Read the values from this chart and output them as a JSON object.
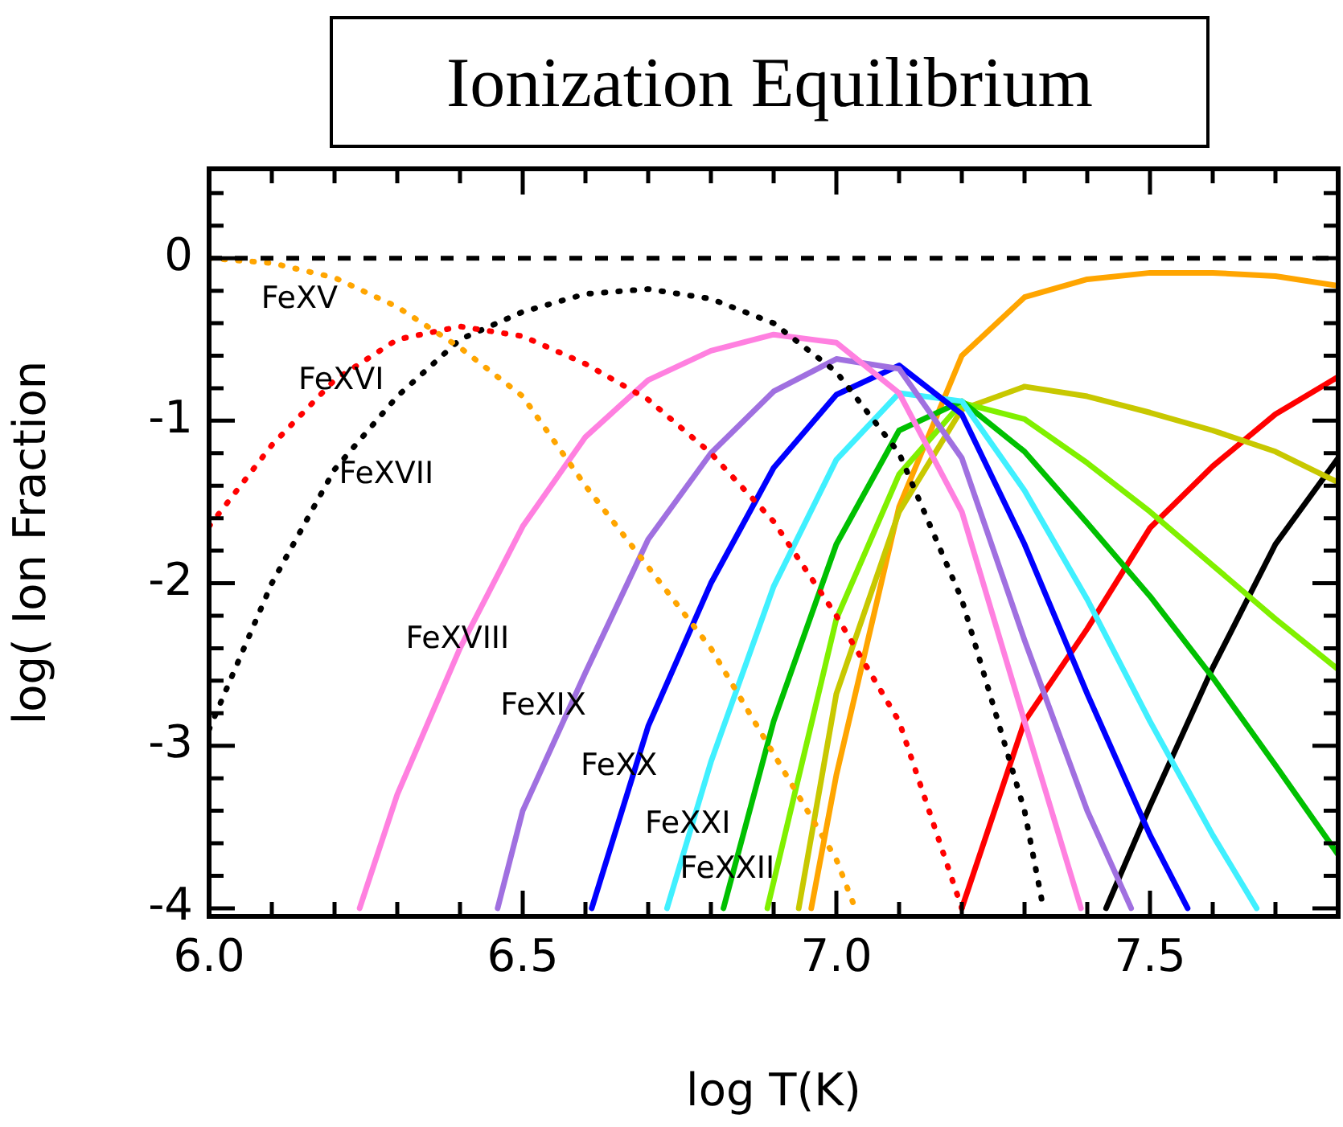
{
  "chart_data": {
    "type": "line",
    "title": "Ionization Equilibrium",
    "xlabel": "log T(K)",
    "ylabel": "log( Ion Fraction",
    "xlim": [
      6.0,
      7.8
    ],
    "ylim": [
      -4.05,
      0.55
    ],
    "xticks": [
      {
        "value": 6.0,
        "label": "6.0"
      },
      {
        "value": 6.1,
        "label": null
      },
      {
        "value": 6.2,
        "label": null
      },
      {
        "value": 6.3,
        "label": null
      },
      {
        "value": 6.4,
        "label": null
      },
      {
        "value": 6.5,
        "label": "6.5"
      },
      {
        "value": 6.6,
        "label": null
      },
      {
        "value": 6.7,
        "label": null
      },
      {
        "value": 6.8,
        "label": null
      },
      {
        "value": 6.9,
        "label": null
      },
      {
        "value": 7.0,
        "label": "7.0"
      },
      {
        "value": 7.1,
        "label": null
      },
      {
        "value": 7.2,
        "label": null
      },
      {
        "value": 7.3,
        "label": null
      },
      {
        "value": 7.4,
        "label": null
      },
      {
        "value": 7.5,
        "label": "7.5"
      },
      {
        "value": 7.6,
        "label": null
      },
      {
        "value": 7.7,
        "label": null
      }
    ],
    "yticks": [
      -4,
      {
        "value": -3.8,
        "label": null
      },
      {
        "value": -3.6,
        "label": null
      },
      {
        "value": -3.4,
        "label": null
      },
      {
        "value": -3.2,
        "label": null
      },
      -3,
      {
        "value": -2.8,
        "label": null
      },
      {
        "value": -2.6,
        "label": null
      },
      {
        "value": -2.4,
        "label": null
      },
      {
        "value": -2.2,
        "label": null
      },
      -2,
      {
        "value": -1.8,
        "label": null
      },
      {
        "value": -1.6,
        "label": null
      },
      {
        "value": -1.4,
        "label": null
      },
      {
        "value": -1.2,
        "label": null
      },
      -1,
      {
        "value": -0.8,
        "label": null
      },
      {
        "value": -0.6,
        "label": null
      },
      {
        "value": -0.4,
        "label": null
      },
      {
        "value": -0.2,
        "label": null
      },
      0,
      {
        "value": 0.2,
        "label": null
      },
      {
        "value": 0.4,
        "label": null
      }
    ],
    "grid": false,
    "legend": false,
    "marker": "none",
    "ref_lines": [
      {
        "axis": "y",
        "value": 0,
        "color": "#000000",
        "line_style": "dashed"
      }
    ],
    "series": [
      {
        "color": "#ffa500",
        "line_style": "dotted",
        "x": [
          6.0,
          6.1,
          6.2,
          6.3,
          6.4,
          6.5,
          6.6,
          6.7,
          6.8,
          6.9,
          7.0,
          7.03
        ],
        "values": [
          0,
          -0.03,
          -0.12,
          -0.3,
          -0.55,
          -0.85,
          -1.4,
          -1.9,
          -2.4,
          -3.05,
          -3.7,
          -4.0
        ]
      },
      {
        "color": "#ff0000",
        "line_style": "dotted",
        "x": [
          6.0,
          6.1,
          6.2,
          6.3,
          6.4,
          6.5,
          6.6,
          6.7,
          6.8,
          6.9,
          7.0,
          7.1,
          7.2
        ],
        "values": [
          -1.65,
          -1.15,
          -0.75,
          -0.5,
          -0.42,
          -0.48,
          -0.65,
          -0.87,
          -1.2,
          -1.62,
          -2.2,
          -2.85,
          -4.0
        ]
      },
      {
        "color": "#000000",
        "line_style": "dotted",
        "x": [
          6.0,
          6.1,
          6.2,
          6.3,
          6.4,
          6.5,
          6.6,
          6.7,
          6.8,
          6.9,
          7.0,
          7.1,
          7.2,
          7.3,
          7.33
        ],
        "values": [
          -2.9,
          -2.0,
          -1.3,
          -0.85,
          -0.5,
          -0.33,
          -0.22,
          -0.19,
          -0.25,
          -0.4,
          -0.7,
          -1.2,
          -2.1,
          -3.4,
          -4.0
        ]
      },
      {
        "color": "#ff80e0",
        "line_style": "solid",
        "x": [
          6.24,
          6.3,
          6.4,
          6.5,
          6.6,
          6.7,
          6.8,
          6.9,
          7.0,
          7.1,
          7.2,
          7.3,
          7.39
        ],
        "values": [
          -4.0,
          -3.3,
          -2.4,
          -1.65,
          -1.1,
          -0.75,
          -0.57,
          -0.47,
          -0.52,
          -0.83,
          -1.56,
          -2.85,
          -4.0
        ]
      },
      {
        "color": "#a070e0",
        "line_style": "solid",
        "x": [
          6.46,
          6.5,
          6.6,
          6.7,
          6.8,
          6.9,
          7.0,
          7.1,
          7.2,
          7.3,
          7.4,
          7.47
        ],
        "values": [
          -4.0,
          -3.4,
          -2.55,
          -1.73,
          -1.2,
          -0.82,
          -0.62,
          -0.68,
          -1.23,
          -2.35,
          -3.4,
          -4.0
        ]
      },
      {
        "color": "#0000ff",
        "line_style": "solid",
        "x": [
          6.61,
          6.7,
          6.8,
          6.9,
          7.0,
          7.1,
          7.2,
          7.3,
          7.4,
          7.5,
          7.56
        ],
        "values": [
          -4.0,
          -2.88,
          -2.0,
          -1.29,
          -0.84,
          -0.66,
          -0.96,
          -1.76,
          -2.68,
          -3.55,
          -4.0
        ]
      },
      {
        "color": "#40f0ff",
        "line_style": "solid",
        "x": [
          6.73,
          6.8,
          6.9,
          7.0,
          7.1,
          7.2,
          7.3,
          7.4,
          7.5,
          7.6,
          7.67
        ],
        "values": [
          -4.0,
          -3.1,
          -2.02,
          -1.24,
          -0.83,
          -0.88,
          -1.43,
          -2.1,
          -2.85,
          -3.55,
          -4.0
        ]
      },
      {
        "color": "#00c000",
        "line_style": "solid",
        "x": [
          6.82,
          6.9,
          7.0,
          7.1,
          7.2,
          7.3,
          7.4,
          7.5,
          7.6,
          7.7,
          7.8
        ],
        "values": [
          -4.0,
          -2.85,
          -1.76,
          -1.06,
          -0.88,
          -1.19,
          -1.63,
          -2.08,
          -2.58,
          -3.12,
          -3.67
        ]
      },
      {
        "color": "#80f000",
        "line_style": "solid",
        "x": [
          6.89,
          7.0,
          7.1,
          7.2,
          7.3,
          7.4,
          7.5,
          7.6,
          7.7,
          7.8
        ],
        "values": [
          -4.0,
          -2.22,
          -1.33,
          -0.89,
          -0.99,
          -1.26,
          -1.56,
          -1.89,
          -2.22,
          -2.53
        ]
      },
      {
        "color": "#c8c800",
        "line_style": "solid",
        "x": [
          6.94,
          7.0,
          7.1,
          7.2,
          7.3,
          7.4,
          7.5,
          7.6,
          7.7,
          7.8
        ],
        "values": [
          -4.0,
          -2.68,
          -1.56,
          -0.93,
          -0.79,
          -0.85,
          -0.95,
          -1.06,
          -1.19,
          -1.38
        ]
      },
      {
        "color": "#ffa500",
        "line_style": "solid",
        "x": [
          6.96,
          7.0,
          7.1,
          7.2,
          7.3,
          7.4,
          7.5,
          7.6,
          7.7,
          7.8
        ],
        "values": [
          -4.0,
          -3.18,
          -1.53,
          -0.6,
          -0.24,
          -0.13,
          -0.09,
          -0.09,
          -0.11,
          -0.17
        ]
      },
      {
        "color": "#ff0000",
        "line_style": "solid",
        "x": [
          7.2,
          7.3,
          7.4,
          7.5,
          7.6,
          7.7,
          7.8
        ],
        "values": [
          -4.0,
          -2.85,
          -2.28,
          -1.66,
          -1.28,
          -0.96,
          -0.73
        ]
      },
      {
        "color": "#000000",
        "line_style": "solid",
        "x": [
          7.43,
          7.5,
          7.6,
          7.7,
          7.8
        ],
        "values": [
          -4.0,
          -3.37,
          -2.52,
          -1.76,
          -1.23
        ]
      }
    ],
    "annotations": [
      "FeXV",
      "FeXVI",
      "FeXVII",
      "FeXVIII",
      "FeXIX",
      "FeXX",
      "FeXXI",
      "FeXXII"
    ]
  }
}
